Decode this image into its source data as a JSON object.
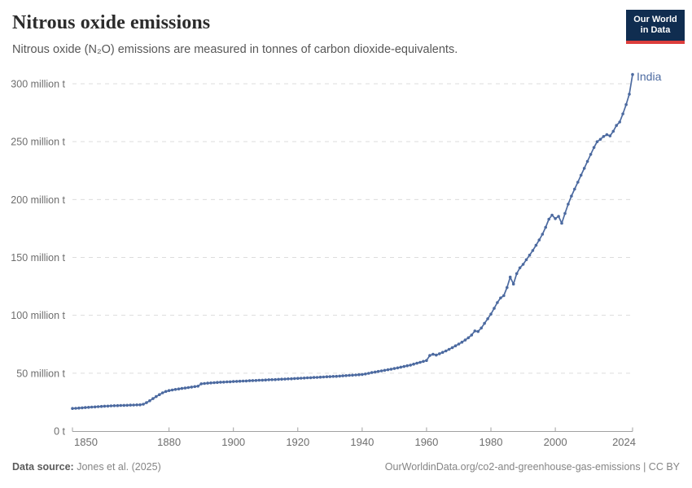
{
  "header": {
    "title": "Nitrous oxide emissions",
    "subtitle": "Nitrous oxide (N₂O) emissions are measured in tonnes of carbon dioxide-equivalents.",
    "logo": {
      "line1": "Our World",
      "line2": "in Data",
      "bg_color": "#102d50",
      "accent_color": "#dc3e3c"
    }
  },
  "chart_data": {
    "type": "line",
    "title": "Nitrous oxide emissions",
    "xlabel": "",
    "ylabel": "",
    "xlim": [
      1850,
      2024
    ],
    "ylim": [
      0,
      310
    ],
    "grid": "horizontal-dashed",
    "legend_position": "end-of-line",
    "x_ticks": [
      1850,
      1880,
      1900,
      1920,
      1940,
      1960,
      1980,
      2000,
      2024
    ],
    "y_ticks": [
      {
        "value": 300,
        "label": "300 million t"
      },
      {
        "value": 250,
        "label": "250 million t"
      },
      {
        "value": 200,
        "label": "200 million t"
      },
      {
        "value": 150,
        "label": "150 million t"
      },
      {
        "value": 100,
        "label": "100 million t"
      },
      {
        "value": 50,
        "label": "50 million t"
      },
      {
        "value": 0,
        "label": "0 t"
      }
    ],
    "series": [
      {
        "name": "India",
        "color": "#4c6aa0",
        "unit": "million tonnes CO2-equivalents",
        "start_year": 1850,
        "values": [
          19.5,
          19.7,
          19.9,
          20.1,
          20.3,
          20.5,
          20.7,
          20.9,
          21.1,
          21.3,
          21.5,
          21.6,
          21.8,
          21.9,
          22.0,
          22.1,
          22.2,
          22.3,
          22.4,
          22.5,
          22.6,
          22.7,
          23.2,
          24.5,
          26.2,
          28.0,
          29.8,
          31.5,
          33.0,
          34.2,
          35.0,
          35.5,
          36.0,
          36.4,
          36.8,
          37.2,
          37.6,
          38.0,
          38.4,
          38.8,
          40.8,
          41.1,
          41.4,
          41.6,
          41.8,
          42.0,
          42.2,
          42.3,
          42.5,
          42.6,
          42.8,
          42.9,
          43.1,
          43.2,
          43.3,
          43.5,
          43.6,
          43.7,
          43.9,
          44.0,
          44.1,
          44.3,
          44.4,
          44.5,
          44.7,
          44.8,
          44.9,
          45.1,
          45.2,
          45.4,
          45.5,
          45.7,
          45.8,
          46.0,
          46.1,
          46.3,
          46.4,
          46.6,
          46.7,
          46.9,
          47.0,
          47.2,
          47.3,
          47.5,
          47.7,
          47.9,
          48.1,
          48.3,
          48.5,
          48.7,
          48.9,
          49.3,
          49.9,
          50.5,
          51.0,
          51.5,
          52.0,
          52.5,
          53.0,
          53.5,
          54.0,
          54.6,
          55.2,
          55.8,
          56.4,
          57.0,
          57.8,
          58.6,
          59.4,
          60.2,
          61.0,
          65.3,
          66.3,
          65.6,
          66.8,
          68.0,
          69.2,
          70.6,
          72.1,
          73.6,
          75.2,
          76.8,
          78.6,
          80.6,
          83.0,
          86.5,
          86.0,
          89.0,
          93.0,
          97.0,
          101.0,
          106.0,
          111.0,
          115.0,
          117.0,
          124.0,
          133.0,
          127.0,
          136.0,
          141.0,
          144.0,
          148.0,
          152.0,
          156.0,
          160.5,
          165.0,
          170.0,
          176.0,
          183.0,
          186.5,
          183.5,
          185.5,
          179.5,
          188.0,
          196.0,
          203.0,
          209.0,
          215.0,
          221.0,
          227.0,
          233.0,
          239.0,
          245.0,
          250.0,
          252.0,
          254.5,
          256.0,
          255.0,
          259.0,
          264.0,
          267.0,
          274.0,
          282.0,
          291.0,
          308.0
        ]
      }
    ],
    "end_label": "India",
    "colors": {
      "grid": "#dcdcdc",
      "axis": "#a1a1a1",
      "tick_text": "#6e6e6e"
    }
  },
  "footer": {
    "source_label": "Data source:",
    "source_value": " Jones et al. (2025)",
    "right_text": "OurWorldinData.org/co2-and-greenhouse-gas-emissions | CC BY"
  }
}
